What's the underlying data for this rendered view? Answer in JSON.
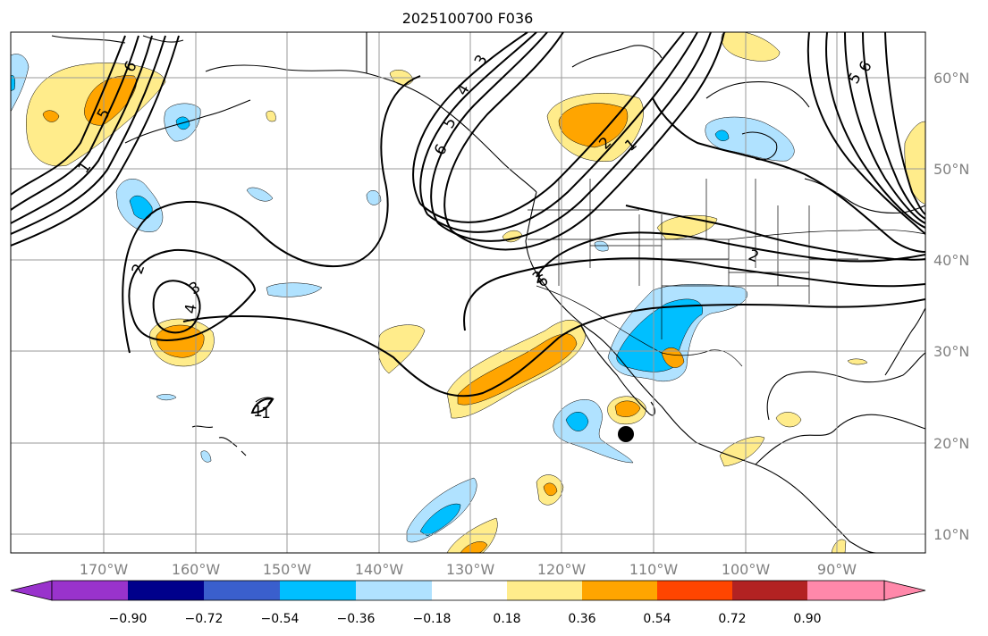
{
  "title": "2025100700 F036",
  "map": {
    "lon_labels": [
      "170°W",
      "160°W",
      "150°W",
      "140°W",
      "130°W",
      "120°W",
      "110°W",
      "100°W",
      "90°W"
    ],
    "lat_labels": [
      "60°N",
      "50°N",
      "40°N",
      "30°N",
      "20°N",
      "10°N"
    ],
    "contour_labels": [
      "1",
      "2",
      "3",
      "4",
      "5",
      "6",
      "1",
      "2",
      "1",
      "2",
      "3",
      "4",
      "5",
      "6",
      "2",
      "5",
      "6",
      "6",
      "1"
    ],
    "marker": {
      "lon": -113,
      "lat": 21,
      "symbol": "filled-circle"
    }
  },
  "colorbar": {
    "colors": [
      "#9933cc",
      "#00008b",
      "#3a5fcd",
      "#00bfff",
      "#b0e2ff",
      "#ffffff",
      "#ffec8b",
      "#ffa500",
      "#ff4500",
      "#b22222",
      "#ff88aa"
    ],
    "ticks": [
      "−0.90",
      "−0.72",
      "−0.54",
      "−0.36",
      "−0.18",
      "0.18",
      "0.36",
      "0.54",
      "0.72",
      "0.90"
    ]
  }
}
